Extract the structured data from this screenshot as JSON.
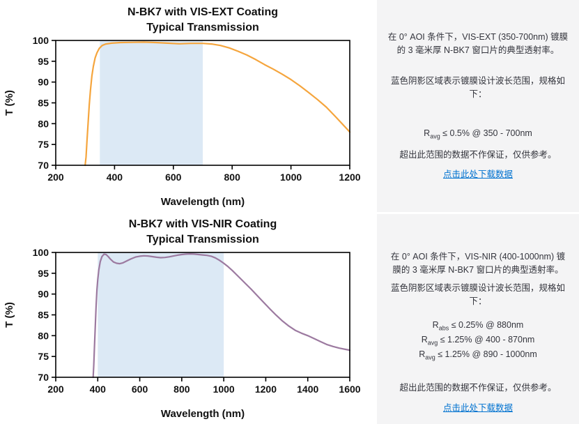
{
  "chart_data": [
    {
      "type": "line",
      "title": "N-BK7 with VIS-EXT Coating",
      "subtitle": "Typical Transmission",
      "xlabel": "Wavelength (nm)",
      "ylabel": "T (%)",
      "xlim": [
        200,
        1200
      ],
      "ylim": [
        70,
        100
      ],
      "xticks": [
        200,
        400,
        600,
        800,
        1000,
        1200
      ],
      "yticks": [
        70,
        75,
        80,
        85,
        90,
        95,
        100
      ],
      "grid": false,
      "legend": "none",
      "shaded_region": {
        "x_from": 350,
        "x_to": 700,
        "color": "#dce9f5",
        "meaning": "coating design wavelength range"
      },
      "series": [
        {
          "name": "VIS-EXT coated N-BK7 typical transmission",
          "color": "#f5a53d",
          "x": [
            300,
            303,
            306,
            310,
            314,
            318,
            323,
            328,
            334,
            340,
            348,
            358,
            370,
            390,
            420,
            460,
            500,
            540,
            580,
            620,
            660,
            700,
            730,
            760,
            790,
            820,
            850,
            880,
            910,
            940,
            970,
            1000,
            1030,
            1060,
            1090,
            1120,
            1150,
            1175,
            1200
          ],
          "y": [
            70,
            72,
            75.5,
            80,
            84.5,
            88,
            91.5,
            93.8,
            95.8,
            97,
            98.1,
            98.8,
            99.15,
            99.35,
            99.5,
            99.55,
            99.6,
            99.5,
            99.35,
            99.2,
            99.3,
            99.3,
            99.15,
            98.8,
            98.2,
            97.4,
            96.5,
            95.4,
            94.2,
            93.1,
            91.9,
            90.6,
            89.1,
            87.5,
            85.8,
            84,
            81.8,
            79.9,
            78
          ]
        }
      ]
    },
    {
      "type": "line",
      "title": "N-BK7 with VIS-NIR Coating",
      "subtitle": "Typical Transmission",
      "xlabel": "Wavelength (nm)",
      "ylabel": "T (%)",
      "xlim": [
        200,
        1600
      ],
      "ylim": [
        70,
        100
      ],
      "xticks": [
        200,
        400,
        600,
        800,
        1000,
        1200,
        1400,
        1600
      ],
      "yticks": [
        70,
        75,
        80,
        85,
        90,
        95,
        100
      ],
      "grid": false,
      "legend": "none",
      "shaded_region": {
        "x_from": 400,
        "x_to": 1000,
        "color": "#dce9f5",
        "meaning": "coating design wavelength range"
      },
      "series": [
        {
          "name": "VIS-NIR coated N-BK7 typical transmission",
          "color": "#9c7aa0",
          "x": [
            378,
            381,
            384,
            388,
            392,
            396,
            400,
            405,
            412,
            420,
            430,
            440,
            450,
            460,
            475,
            490,
            505,
            520,
            540,
            560,
            580,
            600,
            620,
            640,
            660,
            680,
            700,
            720,
            740,
            760,
            780,
            800,
            820,
            840,
            860,
            880,
            900,
            920,
            940,
            960,
            980,
            1000,
            1020,
            1040,
            1060,
            1080,
            1100,
            1130,
            1160,
            1190,
            1220,
            1250,
            1280,
            1310,
            1340,
            1370,
            1400,
            1430,
            1460,
            1490,
            1520,
            1550,
            1580,
            1600
          ],
          "y": [
            70,
            73,
            77,
            82,
            87,
            91,
            93.5,
            95.8,
            97.8,
            99,
            99.6,
            99.5,
            99,
            98.4,
            97.7,
            97.4,
            97.3,
            97.5,
            98,
            98.5,
            98.9,
            99.1,
            99.2,
            99.15,
            99,
            98.85,
            98.75,
            98.8,
            98.95,
            99.15,
            99.35,
            99.5,
            99.6,
            99.65,
            99.6,
            99.5,
            99.4,
            99.3,
            99.1,
            98.7,
            98.1,
            97.4,
            96.6,
            95.7,
            94.7,
            93.7,
            92.7,
            91.2,
            89.6,
            88,
            86.4,
            84.9,
            83.5,
            82.3,
            81.3,
            80.6,
            80,
            79.3,
            78.6,
            77.9,
            77.4,
            77,
            76.7,
            76.5
          ]
        }
      ]
    }
  ],
  "panels": [
    {
      "description": "在 0° AOI 条件下，VIS-EXT (350-700nm) 镀膜的 3 毫米厚 N-BK7 窗口片的典型透射率。",
      "shade_note": "蓝色阴影区域表示镀膜设计波长范围，规格如下：",
      "specs": [
        {
          "symbol": "R",
          "subscript": "avg",
          "value": " ≤ 0.5% @ 350 - 700nm"
        }
      ],
      "disclaimer": "超出此范围的数据不作保证，仅供参考。",
      "download_link": "点击此处下载数据"
    },
    {
      "description": "在 0° AOI 条件下，VIS-NIR (400-1000nm) 镀膜的 3 毫米厚 N-BK7 窗口片的典型透射率。",
      "shade_note": "蓝色阴影区域表示镀膜设计波长范围，规格如下：",
      "specs": [
        {
          "symbol": "R",
          "subscript": "abs",
          "value": " ≤ 0.25% @ 880nm"
        },
        {
          "symbol": "R",
          "subscript": "avg",
          "value": " ≤ 1.25% @ 400 - 870nm"
        },
        {
          "symbol": "R",
          "subscript": "avg",
          "value": " ≤ 1.25% @ 890 - 1000nm"
        }
      ],
      "disclaimer": "超出此范围的数据不作保证，仅供参考。",
      "download_link": "点击此处下载数据"
    }
  ],
  "colors": {
    "panel_bg": "#f4f4f5",
    "link": "#0072d0",
    "text": "#33343c",
    "axis": "#000000",
    "shade": "#dce9f5"
  }
}
